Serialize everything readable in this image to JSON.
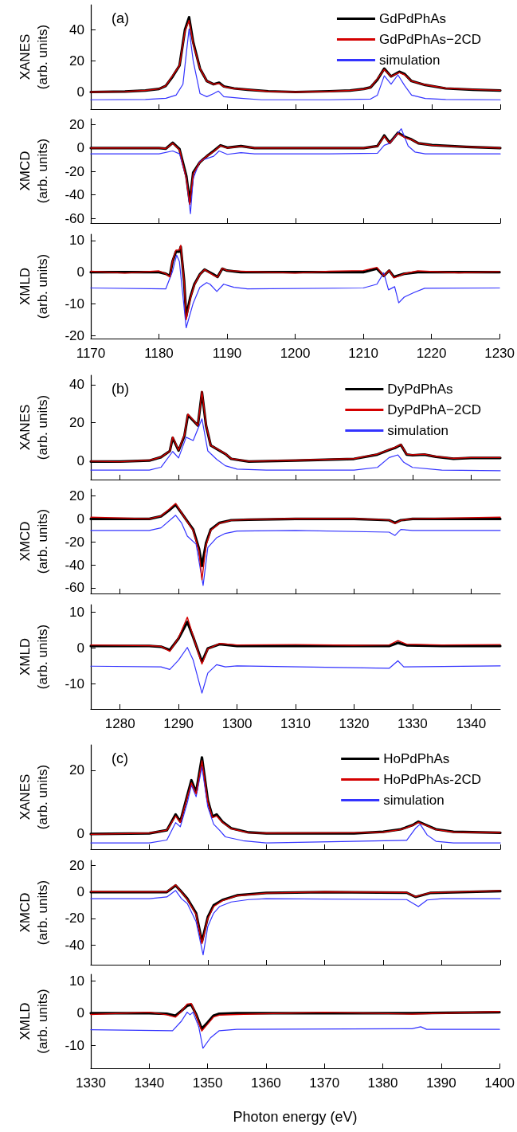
{
  "chart_data": [
    {
      "type": "line",
      "ylabel": "XANES\n(arb. units)",
      "annotations": [
        "(a)"
      ],
      "legend": "top right",
      "marker": "none",
      "line_style": "solid",
      "grid": false,
      "tick_labels": "y",
      "xlim": [
        1170,
        1230
      ],
      "xticks": [
        1170,
        1180,
        1190,
        1200,
        1210,
        1220,
        1230
      ],
      "ylim": [
        -11,
        56
      ],
      "yticks": [
        0,
        20,
        40
      ],
      "series": [
        {
          "name": "GdPdPhAs",
          "color": "#000000",
          "x": [
            1170,
            1175,
            1178,
            1180,
            1181,
            1182,
            1183,
            1183.8,
            1184.4,
            1185,
            1186,
            1187,
            1188,
            1188.8,
            1189.5,
            1191,
            1193,
            1196,
            1200,
            1205,
            1208,
            1210,
            1211,
            1212,
            1213,
            1214,
            1215.2,
            1216,
            1217,
            1219,
            1222,
            1226,
            1230
          ],
          "values": [
            0,
            0.3,
            1,
            2,
            4,
            10,
            17,
            40,
            48,
            32,
            15,
            7,
            5,
            6,
            3.6,
            2.3,
            1.5,
            0.5,
            0,
            0.5,
            1,
            2,
            3,
            8,
            15,
            10,
            13,
            11.5,
            7,
            4.5,
            2.3,
            1.5,
            1
          ]
        },
        {
          "name": "GdPdPhAs−2CD",
          "color": "#d40000",
          "x": [
            1170,
            1175,
            1178,
            1180,
            1181,
            1182,
            1183,
            1183.8,
            1184.4,
            1185,
            1186,
            1187,
            1188,
            1188.8,
            1189.5,
            1191,
            1193,
            1196,
            1200,
            1205,
            1208,
            1210,
            1211,
            1212,
            1213,
            1214,
            1215.2,
            1216,
            1217,
            1219,
            1222,
            1226,
            1230
          ],
          "values": [
            0,
            0.3,
            1,
            2,
            4,
            10.5,
            17,
            39,
            46,
            31,
            15,
            7,
            5,
            5.5,
            3.4,
            2.2,
            1.5,
            0.4,
            0,
            0.4,
            1,
            1.8,
            3,
            8.5,
            14.5,
            10,
            12.5,
            11,
            7,
            4.6,
            2.4,
            1.6,
            1.1
          ]
        },
        {
          "name": "simulation",
          "color": "#3333ff",
          "x": [
            1170,
            1178,
            1181,
            1182.5,
            1183.5,
            1184,
            1184.4,
            1185,
            1186,
            1187,
            1188,
            1188.7,
            1189.5,
            1192,
            1195,
            1205,
            1211,
            1212,
            1213,
            1214,
            1215,
            1216,
            1217,
            1219,
            1222,
            1230
          ],
          "values": [
            -5,
            -4.8,
            -4,
            -2,
            5,
            25,
            40.5,
            20,
            -1,
            -3,
            -1,
            0.6,
            -3,
            -4,
            -5,
            -5,
            -4.5,
            -2,
            10.4,
            5,
            11,
            4,
            -2,
            -4.2,
            -4.8,
            -5
          ]
        }
      ]
    },
    {
      "type": "line",
      "ylabel": "XMCD\n(arb. units)",
      "marker": "none",
      "line_style": "solid",
      "grid": false,
      "tick_labels": "y",
      "xlim": [
        1170,
        1230
      ],
      "xticks": [
        1170,
        1180,
        1190,
        1200,
        1210,
        1220,
        1230
      ],
      "ylim": [
        -64,
        25
      ],
      "yticks": [
        -60,
        -40,
        -20,
        0,
        20
      ],
      "series": [
        {
          "color": "#000000",
          "x": [
            1170,
            1175,
            1180,
            1181,
            1182,
            1183,
            1184,
            1184.5,
            1185,
            1186,
            1187,
            1188,
            1189,
            1190,
            1192,
            1194,
            1200,
            1205,
            1210,
            1212,
            1213,
            1213.8,
            1215,
            1216,
            1217,
            1218,
            1220,
            1225,
            1230
          ],
          "values": [
            0,
            0,
            0,
            -0.5,
            4.5,
            -1,
            -24,
            -46,
            -21,
            -12,
            -7,
            -2.5,
            2.3,
            0.3,
            1.7,
            0,
            0,
            0,
            0,
            1.7,
            10.7,
            4.5,
            13,
            9.6,
            7.3,
            4,
            2.5,
            1,
            0
          ]
        },
        {
          "color": "#d40000",
          "x": [
            1170,
            1175,
            1180,
            1181,
            1182,
            1183,
            1184,
            1184.5,
            1185,
            1186,
            1187,
            1188,
            1189,
            1190,
            1192,
            1194,
            1200,
            1205,
            1210,
            1212,
            1213,
            1213.8,
            1215,
            1216,
            1217,
            1218,
            1220,
            1225,
            1230
          ],
          "values": [
            0,
            0,
            0,
            -0.5,
            4,
            -1.5,
            -26,
            -48,
            -22,
            -12,
            -7,
            -3,
            2,
            0,
            1.5,
            0,
            0,
            0,
            0,
            1.5,
            10,
            4,
            12.5,
            9,
            7,
            4,
            2.3,
            1,
            0
          ]
        },
        {
          "color": "#3333ff",
          "x": [
            1170,
            1180,
            1182,
            1183,
            1184,
            1184.6,
            1185,
            1186,
            1188,
            1188.8,
            1190,
            1192,
            1194,
            1205,
            1212,
            1213,
            1213.8,
            1215.5,
            1216.5,
            1217.5,
            1219,
            1230
          ],
          "values": [
            -5,
            -5,
            -2.5,
            -5,
            -26,
            -56,
            -26,
            -11,
            -7,
            -2.5,
            -5.4,
            -4,
            -5,
            -5,
            -4.5,
            2.3,
            4,
            16.4,
            1.7,
            -3.4,
            -5,
            -5
          ]
        }
      ]
    },
    {
      "type": "line",
      "ylabel": "XMLD\n(arb. units)",
      "marker": "none",
      "line_style": "solid",
      "grid": false,
      "xlim": [
        1170,
        1230
      ],
      "xticks": [
        1170,
        1180,
        1190,
        1200,
        1210,
        1220,
        1230
      ],
      "ylim": [
        -21,
        12
      ],
      "yticks": [
        -20,
        -10,
        0,
        10
      ],
      "series": [
        {
          "color": "#000000",
          "x": [
            1170,
            1175,
            1180,
            1181,
            1181.6,
            1182,
            1182.5,
            1183,
            1183.2,
            1183.7,
            1184,
            1184.6,
            1185.2,
            1186,
            1186.7,
            1188,
            1188.6,
            1189.3,
            1190,
            1192,
            1200,
            1205,
            1210,
            1212,
            1213,
            1213.8,
            1214.5,
            1216,
            1218,
            1224,
            1230
          ],
          "values": [
            0,
            0,
            0,
            -0.5,
            -1.2,
            3.4,
            6.5,
            6.5,
            8,
            -2.8,
            -14,
            -8,
            -3.8,
            -0.7,
            0.8,
            -0.7,
            -1.5,
            1.1,
            0.5,
            0,
            0,
            0,
            0,
            1.1,
            -1.2,
            0.5,
            -1.5,
            -0.5,
            0,
            0,
            0
          ]
        },
        {
          "color": "#d40000",
          "x": [
            1170,
            1175,
            1180,
            1181,
            1181.6,
            1182,
            1182.5,
            1183,
            1183.2,
            1183.7,
            1184,
            1184.6,
            1185.2,
            1186,
            1186.7,
            1188,
            1188.6,
            1189.3,
            1190,
            1192,
            1200,
            1205,
            1210,
            1212,
            1213,
            1213.8,
            1214.5,
            1216,
            1218,
            1224,
            1230
          ],
          "values": [
            0.3,
            -0.3,
            0.4,
            -0.5,
            -1.5,
            3.6,
            7,
            7,
            8.5,
            -3,
            -15,
            -8.5,
            -4,
            -0.8,
            0.8,
            -1,
            -1.6,
            1.2,
            0.5,
            0.3,
            -0.3,
            0.3,
            0.5,
            1.5,
            -1.2,
            0.6,
            -1.8,
            -0.5,
            0.4,
            -0.2,
            0.2
          ]
        },
        {
          "color": "#3333ff",
          "x": [
            1170,
            1181,
            1182,
            1182.6,
            1183,
            1184,
            1185,
            1186,
            1187,
            1187.5,
            1188.5,
            1189.5,
            1191,
            1193,
            1210,
            1212,
            1213,
            1213.7,
            1214.6,
            1215.2,
            1216,
            1217.5,
            1219,
            1230
          ],
          "values": [
            -5,
            -5.3,
            0.3,
            5.4,
            3.4,
            -17.6,
            -10,
            -4.8,
            -3.3,
            -3.8,
            -6.1,
            -3.8,
            -4.8,
            -5.3,
            -5,
            -3.8,
            -0.2,
            -5.6,
            -4.6,
            -9.7,
            -7.9,
            -6.4,
            -5.1,
            -5
          ]
        }
      ]
    },
    {
      "type": "line",
      "ylabel": "XANES\n(arb. units)",
      "annotations": [
        "(b)"
      ],
      "legend": "top right",
      "marker": "none",
      "line_style": "solid",
      "grid": false,
      "tick_labels": "y",
      "xlim": [
        1275,
        1345
      ],
      "xticks": [
        1280,
        1290,
        1300,
        1310,
        1320,
        1330,
        1340
      ],
      "ylim": [
        -10,
        45
      ],
      "yticks": [
        0,
        20,
        40
      ],
      "series": [
        {
          "name": "DyPdPhAs",
          "color": "#000000",
          "x": [
            1275,
            1280,
            1285,
            1287,
            1288.5,
            1289,
            1290,
            1291,
            1291.6,
            1293.3,
            1294,
            1294.7,
            1295.5,
            1297,
            1298,
            1299,
            1302,
            1310,
            1320,
            1324,
            1326,
            1327,
            1328,
            1329,
            1330,
            1332,
            1334,
            1337,
            1340,
            1345
          ],
          "values": [
            -0.5,
            -0.5,
            0,
            1.8,
            5,
            12,
            5.3,
            13,
            24,
            18.5,
            36,
            18.5,
            8,
            5.3,
            3.5,
            0.9,
            -0.5,
            0,
            0.9,
            3.2,
            5.6,
            6.7,
            8.3,
            3.2,
            2.8,
            3.2,
            2,
            1,
            1.4,
            1.4
          ]
        },
        {
          "name": "DyPdPhA−2CD",
          "color": "#d40000",
          "x": [
            1275,
            1280,
            1285,
            1287,
            1288.5,
            1289,
            1290,
            1291,
            1291.6,
            1293.3,
            1294,
            1294.7,
            1295.5,
            1297,
            1298,
            1299,
            1302,
            1310,
            1320,
            1324,
            1326,
            1327,
            1328,
            1329,
            1330,
            1332,
            1334,
            1337,
            1340,
            1345
          ],
          "values": [
            -0.3,
            -0.6,
            0.2,
            1.8,
            5,
            12.5,
            5.5,
            13.5,
            24.5,
            18.5,
            36.5,
            19,
            8,
            5.5,
            3.6,
            1,
            -0.4,
            0.2,
            1,
            3.4,
            5.8,
            7,
            8.5,
            3.4,
            3,
            3.4,
            2.2,
            1.2,
            1.6,
            1.6
          ]
        },
        {
          "name": "simulation",
          "color": "#3333ff",
          "x": [
            1275,
            1285,
            1287,
            1289,
            1290,
            1291.3,
            1292.5,
            1294,
            1295,
            1296.5,
            1298,
            1300,
            1305,
            1320,
            1324,
            1326,
            1327.5,
            1328.5,
            1330,
            1335,
            1345
          ],
          "values": [
            -5,
            -5,
            -3.5,
            4.8,
            1.4,
            12.3,
            10.6,
            22,
            5.1,
            0.7,
            -2.7,
            -4.5,
            -5,
            -5,
            -3.6,
            1.6,
            3,
            -0.9,
            -3.6,
            -5,
            -5.3
          ]
        }
      ]
    },
    {
      "type": "line",
      "ylabel": "XMCD\n(arb. units)",
      "marker": "none",
      "line_style": "solid",
      "grid": false,
      "tick_labels": "y",
      "xlim": [
        1275,
        1345
      ],
      "xticks": [
        1280,
        1290,
        1300,
        1310,
        1320,
        1330,
        1340
      ],
      "ylim": [
        -65,
        26
      ],
      "yticks": [
        -60,
        -40,
        -20,
        0,
        20
      ],
      "series": [
        {
          "color": "#000000",
          "x": [
            1275,
            1285,
            1287,
            1288.5,
            1289.5,
            1290.5,
            1291.5,
            1292.5,
            1293.5,
            1294,
            1294.7,
            1295.5,
            1297,
            1299,
            1302,
            1310,
            1320,
            1326,
            1327,
            1328,
            1330,
            1345
          ],
          "values": [
            0,
            0,
            2.3,
            8,
            12.4,
            5.2,
            -2,
            -9.2,
            -26,
            -41,
            -21,
            -9.2,
            -3.4,
            -1.1,
            -0.6,
            0,
            0,
            -1.1,
            -3.4,
            -1.1,
            0,
            0
          ]
        },
        {
          "color": "#d40000",
          "x": [
            1275,
            1285,
            1287,
            1288.5,
            1289.5,
            1290.5,
            1291.5,
            1292.5,
            1293.5,
            1294,
            1294.7,
            1295.5,
            1297,
            1299,
            1302,
            1310,
            1320,
            1326,
            1327,
            1328,
            1330,
            1345
          ],
          "values": [
            1.5,
            0.2,
            2.5,
            9,
            13.5,
            5.5,
            -2.5,
            -10,
            -28,
            -53,
            -23,
            -10,
            -3.8,
            -1.2,
            -0.5,
            0.3,
            0.4,
            -1,
            -4,
            -1.2,
            0.2,
            1.5
          ]
        },
        {
          "color": "#3333ff",
          "x": [
            1275,
            1285,
            1287,
            1289.5,
            1290.5,
            1291.5,
            1293,
            1294.2,
            1295,
            1296.5,
            1298,
            1300,
            1310,
            1326,
            1327,
            1328,
            1330,
            1345
          ],
          "values": [
            -10,
            -10,
            -7.8,
            3.2,
            -3.4,
            -15,
            -22,
            -58,
            -25,
            -16.4,
            -12.6,
            -10.6,
            -10,
            -11.5,
            -14.4,
            -9.2,
            -10,
            -10
          ]
        }
      ]
    },
    {
      "type": "line",
      "ylabel": "XMLD\n(arb. units)",
      "marker": "none",
      "line_style": "solid",
      "grid": false,
      "xlim": [
        1275,
        1345
      ],
      "xticks": [
        1280,
        1290,
        1300,
        1310,
        1320,
        1330,
        1340
      ],
      "ylim": [
        -17,
        12
      ],
      "yticks": [
        -10,
        0,
        10
      ],
      "series": [
        {
          "color": "#000000",
          "x": [
            1275,
            1285,
            1287,
            1288.5,
            1290,
            1291.5,
            1292.5,
            1293.5,
            1294,
            1295,
            1297,
            1300,
            1310,
            1320,
            1326,
            1327.5,
            1329,
            1335,
            1345
          ],
          "values": [
            0.5,
            0.5,
            0.3,
            -0.6,
            2.6,
            7.2,
            3,
            -1.6,
            -3.9,
            -0.2,
            1,
            0.5,
            0.5,
            0.5,
            0.5,
            1.4,
            0.7,
            0.5,
            0.5
          ]
        },
        {
          "color": "#d40000",
          "x": [
            1275,
            1285,
            1287,
            1288.5,
            1290,
            1291.5,
            1292.5,
            1293.5,
            1294,
            1295,
            1297,
            1300,
            1310,
            1320,
            1326,
            1327.5,
            1329,
            1335,
            1345
          ],
          "values": [
            0.8,
            0.6,
            0.4,
            -1,
            2.8,
            8.5,
            3.2,
            -2,
            -4.5,
            -0.3,
            1.2,
            0.8,
            0.9,
            0.7,
            0.8,
            2,
            1,
            0.8,
            0.9
          ]
        },
        {
          "color": "#3333ff",
          "x": [
            1275,
            1287,
            1288.5,
            1290,
            1291.5,
            1292.5,
            1294,
            1295,
            1296.5,
            1298,
            1300,
            1326,
            1327.5,
            1328.5,
            1345
          ],
          "values": [
            -5.1,
            -5.3,
            -6,
            -3.4,
            0.1,
            -3.4,
            -12.6,
            -7,
            -4.7,
            -5.3,
            -5,
            -5.7,
            -3.6,
            -5.3,
            -5
          ]
        }
      ]
    },
    {
      "type": "line",
      "ylabel": "XANES\n(arb. units)",
      "annotations": [
        "(c)"
      ],
      "legend": "top right",
      "marker": "none",
      "line_style": "solid",
      "grid": false,
      "tick_labels": "y",
      "xlim": [
        1330,
        1400
      ],
      "xticks": [
        1330,
        1340,
        1350,
        1360,
        1370,
        1380,
        1390,
        1400
      ],
      "ylim": [
        -5,
        28
      ],
      "yticks": [
        0,
        20
      ],
      "series": [
        {
          "name": "HoPdPhAs",
          "color": "#000000",
          "x": [
            1330,
            1340,
            1343,
            1344.5,
            1345.3,
            1346.5,
            1347.2,
            1348,
            1349,
            1350,
            1350.8,
            1351.5,
            1352.5,
            1354,
            1357,
            1360,
            1375,
            1380,
            1383,
            1385,
            1386,
            1387,
            1389,
            1392,
            1400
          ],
          "values": [
            -0.2,
            0,
            1,
            6,
            3.7,
            12,
            16.8,
            13,
            24,
            10.5,
            5.3,
            6,
            3.7,
            1.6,
            0.3,
            0,
            0,
            0.5,
            1.3,
            2.6,
            3.7,
            2.9,
            1.3,
            0.5,
            0.2
          ]
        },
        {
          "name": "HoPdPhAs-2CD",
          "color": "#d40000",
          "x": [
            1330,
            1340,
            1343,
            1344.5,
            1345.3,
            1346.5,
            1347.2,
            1348,
            1349,
            1350,
            1350.8,
            1351.5,
            1352.5,
            1354,
            1357,
            1360,
            1375,
            1380,
            1383,
            1385,
            1386,
            1387,
            1389,
            1392,
            1400
          ],
          "values": [
            -0.3,
            0.1,
            1,
            5.5,
            3.5,
            11.5,
            16,
            12.5,
            23,
            10,
            5,
            5.5,
            3.5,
            1.5,
            0.2,
            0.1,
            0.2,
            0.4,
            1.2,
            2.5,
            3.5,
            2.8,
            1.2,
            0.4,
            0.3
          ]
        },
        {
          "name": "simulation",
          "color": "#3333ff",
          "x": [
            1330,
            1340,
            1343,
            1344.5,
            1345.3,
            1346.5,
            1347.2,
            1348,
            1349,
            1350,
            1351,
            1352,
            1353,
            1356,
            1360,
            1384,
            1385.5,
            1386.3,
            1387.5,
            1389,
            1392,
            1400
          ],
          "values": [
            -3,
            -3,
            -2.1,
            3.4,
            2.1,
            9.7,
            15.3,
            11.6,
            21,
            8.4,
            2.9,
            1,
            -1.1,
            -2.3,
            -3,
            -2.2,
            1.6,
            2.9,
            -0.5,
            -2.5,
            -3,
            -3
          ]
        }
      ]
    },
    {
      "type": "line",
      "ylabel": "XMCD\n(arb. units)",
      "marker": "none",
      "line_style": "solid",
      "grid": false,
      "tick_labels": "y",
      "xlim": [
        1330,
        1400
      ],
      "xticks": [
        1330,
        1340,
        1350,
        1360,
        1370,
        1380,
        1390,
        1400
      ],
      "ylim": [
        -55,
        24
      ],
      "yticks": [
        -40,
        -20,
        0,
        20
      ],
      "series": [
        {
          "color": "#000000",
          "x": [
            1330,
            1340,
            1343,
            1344.5,
            1345.3,
            1346.5,
            1348,
            1349,
            1350,
            1351,
            1352.5,
            1355,
            1360,
            1370,
            1384,
            1385.5,
            1386.5,
            1388,
            1400
          ],
          "values": [
            0,
            0,
            0,
            5,
            1.2,
            -5,
            -16,
            -37.5,
            -19,
            -10,
            -6,
            -2.5,
            -0.7,
            0,
            -0.5,
            -3.7,
            -2.5,
            -0.7,
            0.7
          ]
        },
        {
          "color": "#d40000",
          "x": [
            1330,
            1340,
            1343,
            1344.5,
            1345.3,
            1346.5,
            1348,
            1349,
            1350,
            1351,
            1352.5,
            1355,
            1360,
            1370,
            1384,
            1385.5,
            1386.5,
            1388,
            1400
          ],
          "values": [
            0.3,
            0.2,
            0.2,
            5.5,
            1,
            -5.5,
            -17,
            -39,
            -20,
            -11,
            -6.5,
            -2.8,
            -0.8,
            0.2,
            -0.3,
            -3.5,
            -2.3,
            -0.5,
            1
          ]
        },
        {
          "color": "#3333ff",
          "x": [
            1330,
            1340,
            1343,
            1344.5,
            1345.5,
            1346.5,
            1348,
            1349.2,
            1350,
            1351,
            1352,
            1354,
            1357,
            1360,
            1384,
            1386,
            1387.5,
            1390,
            1400
          ],
          "values": [
            -5,
            -5,
            -3.7,
            1.2,
            -5,
            -8.7,
            -22.5,
            -47.5,
            -26,
            -16,
            -11,
            -7.5,
            -5.7,
            -5,
            -5.7,
            -11,
            -6,
            -5,
            -5
          ]
        }
      ]
    },
    {
      "type": "line",
      "xlabel": "Photon energy (eV)",
      "ylabel": "XMLD\n(arb. units)",
      "marker": "none",
      "line_style": "solid",
      "grid": false,
      "xlim": [
        1330,
        1400
      ],
      "xticks": [
        1330,
        1340,
        1350,
        1360,
        1370,
        1380,
        1390,
        1400
      ],
      "ylim": [
        -17,
        12
      ],
      "yticks": [
        -10,
        0,
        10
      ],
      "series": [
        {
          "color": "#000000",
          "x": [
            1330,
            1340,
            1343,
            1344.5,
            1345.5,
            1346.5,
            1347.2,
            1348,
            1349,
            1350,
            1351,
            1352,
            1355,
            1370,
            1385,
            1400
          ],
          "values": [
            0,
            0,
            -0.2,
            -0.8,
            0.7,
            2.3,
            2.6,
            -0.2,
            -4.8,
            -2.9,
            -0.8,
            -0.2,
            0,
            0,
            0,
            0.3
          ]
        },
        {
          "color": "#d40000",
          "x": [
            1330,
            1340,
            1343,
            1344.5,
            1345.5,
            1346.5,
            1347.2,
            1348,
            1349,
            1350,
            1351,
            1352,
            1355,
            1370,
            1385,
            1400
          ],
          "values": [
            -0.4,
            0.3,
            -0.5,
            -1.2,
            0.5,
            2.8,
            3,
            -0.5,
            -5.5,
            -3.4,
            -1.2,
            -0.6,
            -0.4,
            0.3,
            -0.3,
            0.5
          ]
        },
        {
          "color": "#3333ff",
          "x": [
            1330,
            1344,
            1345.5,
            1346.5,
            1347,
            1347.5,
            1348.5,
            1349.2,
            1350.5,
            1352,
            1355,
            1385,
            1386.5,
            1387.5,
            1400
          ],
          "values": [
            -5.1,
            -5.4,
            -2.5,
            0.3,
            -0.5,
            0.3,
            -4.3,
            -10.8,
            -7.6,
            -5.4,
            -5,
            -4.8,
            -4.2,
            -5,
            -5
          ]
        }
      ]
    }
  ]
}
